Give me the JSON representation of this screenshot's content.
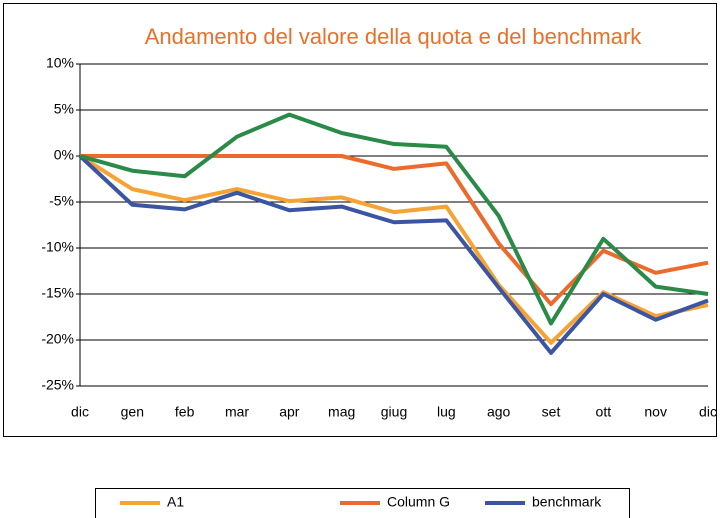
{
  "chart_data": {
    "type": "line",
    "title": "Andamento del valore della quota e del benchmark",
    "categories": [
      "dic",
      "gen",
      "feb",
      "mar",
      "apr",
      "mag",
      "giug",
      "lug",
      "ago",
      "set",
      "ott",
      "nov",
      "dic"
    ],
    "series": [
      {
        "name": "A1",
        "color": "#f7a234",
        "values": [
          0,
          -3.6,
          -4.8,
          -3.6,
          -4.9,
          -4.5,
          -6.1,
          -5.5,
          -14.0,
          -20.3,
          -14.8,
          -17.4,
          -16.2
        ]
      },
      {
        "name": "Column G",
        "color": "#ec6a2c",
        "values": [
          0,
          0,
          0,
          0,
          0,
          0,
          -1.4,
          -0.8,
          -9.5,
          -16.1,
          -10.3,
          -12.7,
          -11.6
        ]
      },
      {
        "name": "benchmark",
        "color": "#3b55a3",
        "values": [
          0,
          -5.3,
          -5.8,
          -4.0,
          -5.9,
          -5.5,
          -7.2,
          -7.0,
          -14.3,
          -21.4,
          -15.0,
          -17.8,
          -15.7
        ]
      },
      {
        "color": "#2a8a48",
        "values": [
          0,
          -1.6,
          -2.2,
          2.1,
          4.5,
          2.5,
          1.3,
          1.0,
          -6.5,
          -18.2,
          -9.0,
          -14.2,
          -15.0
        ]
      }
    ],
    "ylim": [
      -25,
      10
    ],
    "yticks": [
      {
        "value": -25,
        "label": "-25%"
      },
      {
        "value": -20,
        "label": "-20%"
      },
      {
        "value": -15,
        "label": "-15%"
      },
      {
        "value": -10,
        "label": "-10%"
      },
      {
        "value": -5,
        "label": "-5%"
      },
      {
        "value": 0,
        "label": "0%"
      },
      {
        "value": 5,
        "label": "5%"
      },
      {
        "value": 10,
        "label": "10%"
      }
    ],
    "grid": true
  }
}
